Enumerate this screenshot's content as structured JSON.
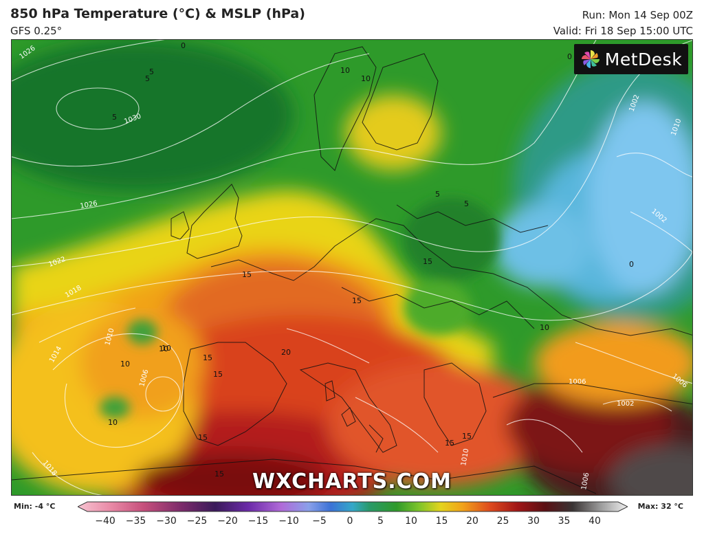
{
  "header": {
    "title": "850 hPa Temperature (°C) & MSLP (hPa)",
    "model": "GFS 0.25°",
    "run": "Run: Mon 14 Sep 00Z",
    "valid": "Valid: Fri 18 Sep 15:00 UTC"
  },
  "logo": {
    "text": "MetDesk",
    "icon": "pinwheel-icon"
  },
  "watermark": "WXCHARTS.COM",
  "legend": {
    "min_label": "Min: -4 °C",
    "max_label": "Max: 32 °C",
    "ticks": [
      "−40",
      "−35",
      "−30",
      "−25",
      "−20",
      "−15",
      "−10",
      "−5",
      "0",
      "5",
      "10",
      "15",
      "20",
      "25",
      "30",
      "35",
      "40"
    ]
  },
  "map_labels": {
    "isobars": [
      "1026",
      "1030",
      "1026",
      "1022",
      "1018",
      "1014",
      "1010",
      "1006",
      "1002",
      "1010",
      "1002",
      "1006",
      "1002",
      "1006",
      "1006",
      "1010",
      "1018"
    ],
    "temps": [
      "0",
      "5",
      "5",
      "5",
      "10",
      "5",
      "5",
      "10",
      "10",
      "10",
      "10",
      "15",
      "15",
      "15",
      "20",
      "15",
      "15",
      "15",
      "15",
      "15",
      "10",
      "10",
      "15",
      "0",
      "0"
    ]
  }
}
